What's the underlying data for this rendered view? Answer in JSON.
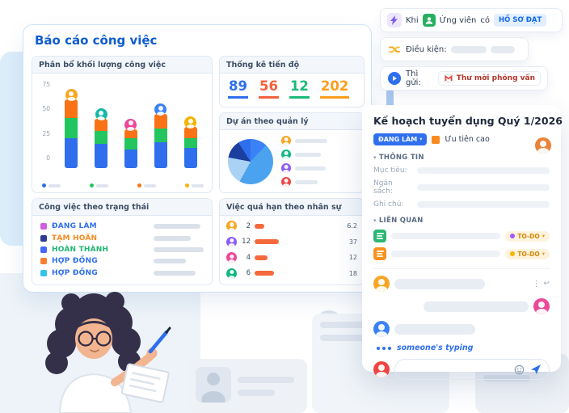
{
  "colors": {
    "primary_blue": "#2f6fed",
    "title_blue": "#0f5cd0",
    "overdue_bar_orange": "#f4693c",
    "placeholder_gray": "#e8edf3"
  },
  "dashboard": {
    "title": "Báo cáo công việc",
    "workload": {
      "title": "Phân bổ khối lượng công việc",
      "y_ticks": [
        "75",
        "50",
        "25",
        "0"
      ],
      "bars": [
        {
          "avatar": "#f6a623",
          "segments": [
            {
              "color": "#2f6fed",
              "value": 32
            },
            {
              "color": "#22c55e",
              "value": 22
            },
            {
              "color": "#f97316",
              "value": 20
            }
          ]
        },
        {
          "avatar": "#14b8a6",
          "segments": [
            {
              "color": "#2f6fed",
              "value": 26
            },
            {
              "color": "#22c55e",
              "value": 14
            },
            {
              "color": "#f97316",
              "value": 13
            }
          ]
        },
        {
          "avatar": "#ec4899",
          "segments": [
            {
              "color": "#2f6fed",
              "value": 20
            },
            {
              "color": "#22c55e",
              "value": 12
            },
            {
              "color": "#f97316",
              "value": 10
            }
          ]
        },
        {
          "avatar": "#3b82f6",
          "segments": [
            {
              "color": "#2f6fed",
              "value": 28
            },
            {
              "color": "#22c55e",
              "value": 15
            },
            {
              "color": "#f97316",
              "value": 15
            }
          ]
        },
        {
          "avatar": "#f4b400",
          "segments": [
            {
              "color": "#2f6fed",
              "value": 22
            },
            {
              "color": "#22c55e",
              "value": 10
            },
            {
              "color": "#f97316",
              "value": 12
            }
          ]
        }
      ],
      "legend_colors": [
        "#2f6fed",
        "#22c55e",
        "#f97316",
        "#f4b400"
      ]
    },
    "progress": {
      "title": "Thống kê tiến độ",
      "stats": [
        {
          "value": "89",
          "color": "#2f6fed"
        },
        {
          "value": "56",
          "color": "#f4603e"
        },
        {
          "value": "12",
          "color": "#1bb978"
        },
        {
          "value": "202",
          "color": "#f99e1c"
        }
      ]
    },
    "projects": {
      "title": "Dự án theo quản lý",
      "slices": [
        {
          "color": "#3b82f6",
          "pct": 12
        },
        {
          "color": "#4ba3ef",
          "pct": 46
        },
        {
          "color": "#a9d2f4",
          "pct": 20
        },
        {
          "color": "#1b3f9e",
          "pct": 13
        },
        {
          "color": "#2f6fed",
          "pct": 9
        }
      ],
      "legend_rows": [
        {
          "color": "#f6a623",
          "bar": 40
        },
        {
          "color": "#10b981",
          "bar": 32
        },
        {
          "color": "#8b5cf6",
          "bar": 38
        },
        {
          "color": "#ef4444",
          "bar": 28
        }
      ]
    },
    "status": {
      "title": "Công việc theo trạng thái",
      "rows": [
        {
          "label": "ĐANG LÀM",
          "label_color": "#2f6fed",
          "square": "#cf5ede",
          "bar": 58
        },
        {
          "label": "TẠM HOÃN",
          "label_color": "#f98a1f",
          "square": "#2c3a8f",
          "bar": 46
        },
        {
          "label": "HOÀN THÀNH",
          "label_color": "#21b573",
          "square": "#4468f5",
          "bar": 62
        },
        {
          "label": "HỢP ĐỒNG",
          "label_color": "#2f6fed",
          "square": "#f97c2f",
          "bar": 40
        },
        {
          "label": "HỢP ĐỒNG",
          "label_color": "#2f6fed",
          "square": "#35c3ee",
          "bar": 52
        }
      ]
    },
    "overdue": {
      "title": "Việc quá hạn theo nhân sự",
      "rows": [
        {
          "avatar": "#f6a623",
          "count": "2",
          "bar": 12,
          "value": "6.2"
        },
        {
          "avatar": "#8b5cf6",
          "count": "12",
          "bar": 30,
          "value": "37"
        },
        {
          "avatar": "#ec4899",
          "count": "4",
          "bar": 16,
          "value": "12"
        },
        {
          "avatar": "#10b981",
          "count": "6",
          "bar": 24,
          "value": "18"
        }
      ]
    }
  },
  "automation": {
    "step1": {
      "prefix": "Khi",
      "app": "Ứng viên",
      "middle": "có",
      "chip": "HỒ SƠ ĐẠT"
    },
    "step2": {
      "label": "Điều kiện:"
    },
    "step3": {
      "label": "Thì gửi:",
      "chip": "Thư mời phỏng vấn"
    }
  },
  "task": {
    "title": "Kế hoạch tuyển dụng Quý 1/2026",
    "status_chip": "ĐANG LÀM",
    "priority_label": "Ưu tiên cao",
    "header_avatar_color": "#e8833a",
    "section_info": "THÔNG TIN",
    "fields": [
      {
        "label": "Mục tiêu:"
      },
      {
        "label": "Ngân sách:"
      },
      {
        "label": "Ghi chú:"
      }
    ],
    "section_related": "LIÊN QUAN",
    "related_rows": [
      {
        "icon_color": "#2bb673",
        "dot_color": "#a855f7",
        "todo": "TO-DO"
      },
      {
        "icon_color": "#f6921e",
        "dot_color": "#f4b400",
        "todo": "TO-DO"
      }
    ],
    "typing_text": "someone's typing",
    "chat_avatar_colors": [
      "#f6a623",
      "#ec4899",
      "#3b82f6",
      "#ef4444"
    ]
  }
}
